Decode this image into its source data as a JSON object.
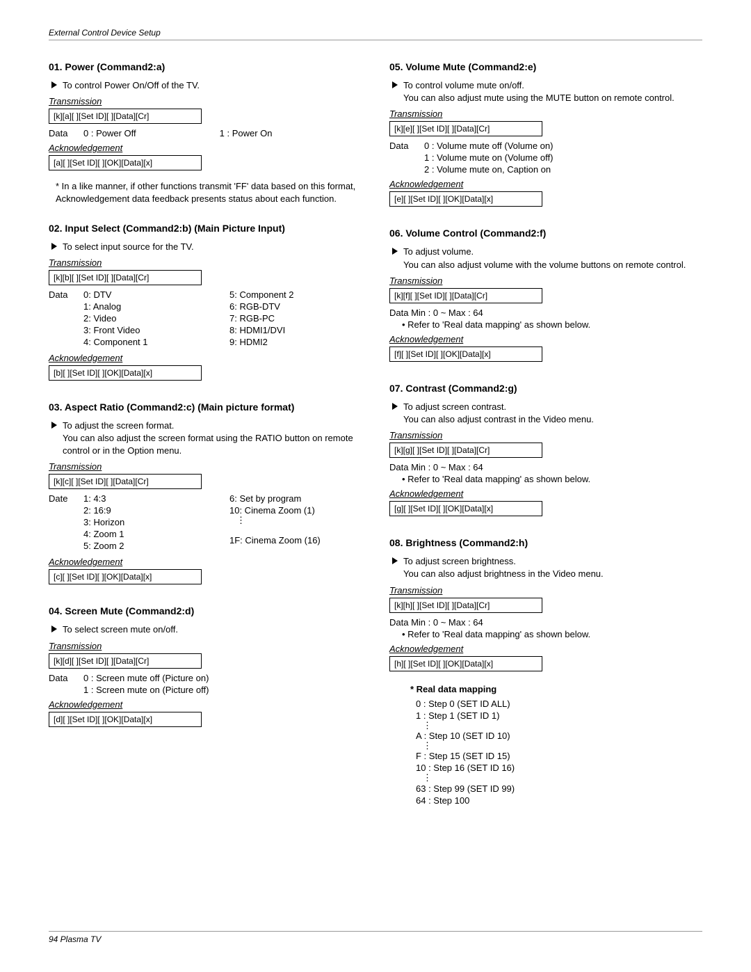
{
  "header": "External Control Device Setup",
  "footer": "94   Plasma TV",
  "transmission_label": "Transmission",
  "ack_label": "Acknowledgement",
  "s01": {
    "title": "01. Power (Command2:a)",
    "desc": "To control Power On/Off of the TV.",
    "tx": "[k][a][  ][Set ID][  ][Data][Cr]",
    "data_label": "Data",
    "d0": "0  :  Power Off",
    "d1": "1  :  Power On",
    "ack": "[a][  ][Set ID][  ][OK][Data][x]",
    "note": "* In a like manner, if other functions transmit 'FF' data based on this format, Acknowledgement data feedback presents status about each function."
  },
  "s02": {
    "title": "02. Input Select (Command2:b) (Main Picture Input)",
    "desc": "To select input source for the TV.",
    "tx": "[k][b][  ][Set ID][  ][Data][Cr]",
    "data_label": "Data",
    "l0": "0: DTV",
    "r0": "5: Component 2",
    "l1": "1: Analog",
    "r1": "6: RGB-DTV",
    "l2": "2: Video",
    "r2": "7: RGB-PC",
    "l3": "3: Front Video",
    "r3": "8: HDMI1/DVI",
    "l4": "4: Component 1",
    "r4": "9: HDMI2",
    "ack": "[b][  ][Set ID][  ][OK][Data][x]"
  },
  "s03": {
    "title": "03. Aspect Ratio (Command2:c) (Main picture format)",
    "desc1": "To adjust the screen format.",
    "desc2": "You can also adjust the screen format using the RATIO button on remote control or in the Option menu.",
    "tx": "[k][c][  ][Set ID][  ][Data][Cr]",
    "data_label": "Date",
    "l0": "1: 4:3",
    "r0": "6: Set by program",
    "l1": "2: 16:9",
    "r1": "10: Cinema Zoom (1)",
    "l2": "3: Horizon",
    "l3": "4: Zoom 1",
    "l4": "5: Zoom 2",
    "r4": "1F: Cinema Zoom (16)",
    "ack": "[c][  ][Set ID][  ][OK][Data][x]"
  },
  "s04": {
    "title": "04. Screen Mute (Command2:d)",
    "desc": "To select screen mute on/off.",
    "tx": "[k][d][  ][Set ID][  ][Data][Cr]",
    "data_label": "Data",
    "d0": "0  :  Screen mute off (Picture on)",
    "d1": "1  :  Screen mute on (Picture off)",
    "ack": "[d][  ][Set ID][  ][OK][Data][x]"
  },
  "s05": {
    "title": "05. Volume Mute (Command2:e)",
    "desc1": "To control volume mute on/off.",
    "desc2": "You can also adjust mute using the MUTE button on remote control.",
    "tx": "[k][e][  ][Set ID][  ][Data][Cr]",
    "data_label": "Data",
    "d0": "0  :  Volume mute off (Volume on)",
    "d1": "1  :  Volume mute on (Volume off)",
    "d2": "2  :  Volume mute on, Caption on",
    "ack": "[e][  ][Set ID][  ][OK][Data][x]"
  },
  "s06": {
    "title": "06. Volume Control (Command2:f)",
    "desc1": "To adjust volume.",
    "desc2": "You can also adjust volume with the volume buttons on remote control.",
    "tx": "[k][f][  ][Set ID][  ][Data][Cr]",
    "data_line": "Data   Min : 0 ~ Max : 64",
    "refer": "Refer to 'Real data mapping' as shown below.",
    "ack": "[f][  ][Set ID][  ][OK][Data][x]"
  },
  "s07": {
    "title": "07. Contrast (Command2:g)",
    "desc1": "To adjust screen contrast.",
    "desc2": "You can also adjust contrast in the Video menu.",
    "tx": "[k][g][  ][Set ID][  ][Data][Cr]",
    "data_line": "Data   Min : 0 ~ Max : 64",
    "refer": "Refer to 'Real data mapping' as shown below.",
    "ack": "[g][  ][Set ID][  ][OK][Data][x]"
  },
  "s08": {
    "title": "08. Brightness (Command2:h)",
    "desc1": "To adjust screen brightness.",
    "desc2": "You can also adjust brightness in the Video menu.",
    "tx": "[k][h][  ][Set ID][  ][Data][Cr]",
    "data_line": "Data   Min : 0 ~ Max : 64",
    "refer": "Refer to 'Real data mapping' as shown below.",
    "ack": "[h][  ][Set ID][  ][OK][Data][x]"
  },
  "mapping": {
    "title": "Real data mapping",
    "m0": "0  :  Step 0   (SET ID ALL)",
    "m1": "1  :  Step 1   (SET ID 1)",
    "m2": "A  :  Step 10  (SET ID 10)",
    "m3": "F  :  Step 15  (SET ID 15)",
    "m4": "10  :  Step 16  (SET ID 16)",
    "m5": "63  :  Step 99  (SET ID 99)",
    "m6": "64  :  Step 100"
  }
}
